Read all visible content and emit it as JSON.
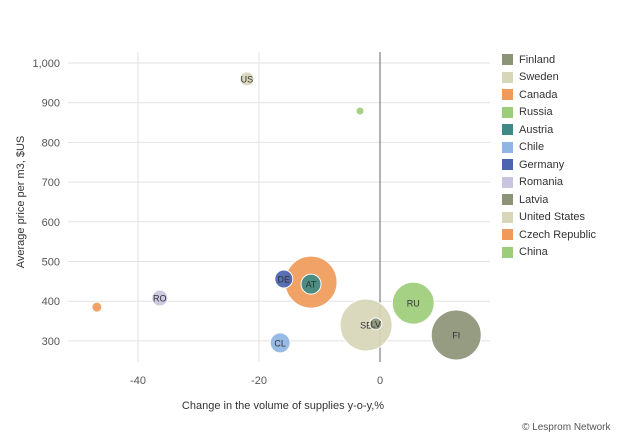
{
  "chart_data": {
    "type": "scatter",
    "subtype": "bubble",
    "title": "",
    "xlabel": "Change in the volume of supplies y-o-y,%",
    "ylabel": "Average price per m3, $US",
    "xlim": [
      -50,
      20
    ],
    "ylim": [
      220,
      1030
    ],
    "x_ticks": [
      {
        "value": -40,
        "label": "-40"
      },
      {
        "value": -20,
        "label": "-20"
      },
      {
        "value": 0,
        "label": "0"
      }
    ],
    "y_ticks": [
      {
        "value": 300,
        "label": "300"
      },
      {
        "value": 400,
        "label": "400"
      },
      {
        "value": 500,
        "label": "500"
      },
      {
        "value": 600,
        "label": "600"
      },
      {
        "value": 700,
        "label": "700"
      },
      {
        "value": 800,
        "label": "800"
      },
      {
        "value": 900,
        "label": "900"
      },
      {
        "value": 1000,
        "label": "1,000"
      }
    ],
    "grid": true,
    "legend_position": "right",
    "series": [
      {
        "name": "Finland",
        "code": "FI",
        "color": "#8c9477",
        "x": 12.6,
        "y": 315,
        "size": 25
      },
      {
        "name": "Sweden",
        "code": "SE",
        "color": "#d7d6b8",
        "x": -2.3,
        "y": 340,
        "size": 26
      },
      {
        "name": "Canada",
        "code": "",
        "color": "#ef9a5a",
        "x": -11.4,
        "y": 448,
        "size": 26
      },
      {
        "name": "Russia",
        "code": "RU",
        "color": "#9ccd7a",
        "x": 5.5,
        "y": 395,
        "size": 21
      },
      {
        "name": "Austria",
        "code": "AT",
        "color": "#3f8a86",
        "x": -11.4,
        "y": 443,
        "size": 10
      },
      {
        "name": "Chile",
        "code": "CL",
        "color": "#8fb5e3",
        "x": -16.5,
        "y": 295,
        "size": 10
      },
      {
        "name": "Germany",
        "code": "DE",
        "color": "#4a64b0",
        "x": -15.9,
        "y": 456,
        "size": 9
      },
      {
        "name": "Romania",
        "code": "RO",
        "color": "#c9c4e0",
        "x": -36.4,
        "y": 408,
        "size": 8
      },
      {
        "name": "Latvia",
        "code": "LV",
        "color": "#8c9477",
        "x": -0.7,
        "y": 343,
        "size": 6
      },
      {
        "name": "United States",
        "code": "US",
        "color": "#d7d6b8",
        "x": -22,
        "y": 960,
        "size": 7
      },
      {
        "name": "Czech Republic",
        "code": "",
        "color": "#ef9a5a",
        "x": -46.8,
        "y": 385,
        "size": 5
      },
      {
        "name": "China",
        "code": "",
        "color": "#9ccd7a",
        "x": -3.3,
        "y": 879,
        "size": 4
      }
    ]
  },
  "credit": "© Lesprom Network"
}
